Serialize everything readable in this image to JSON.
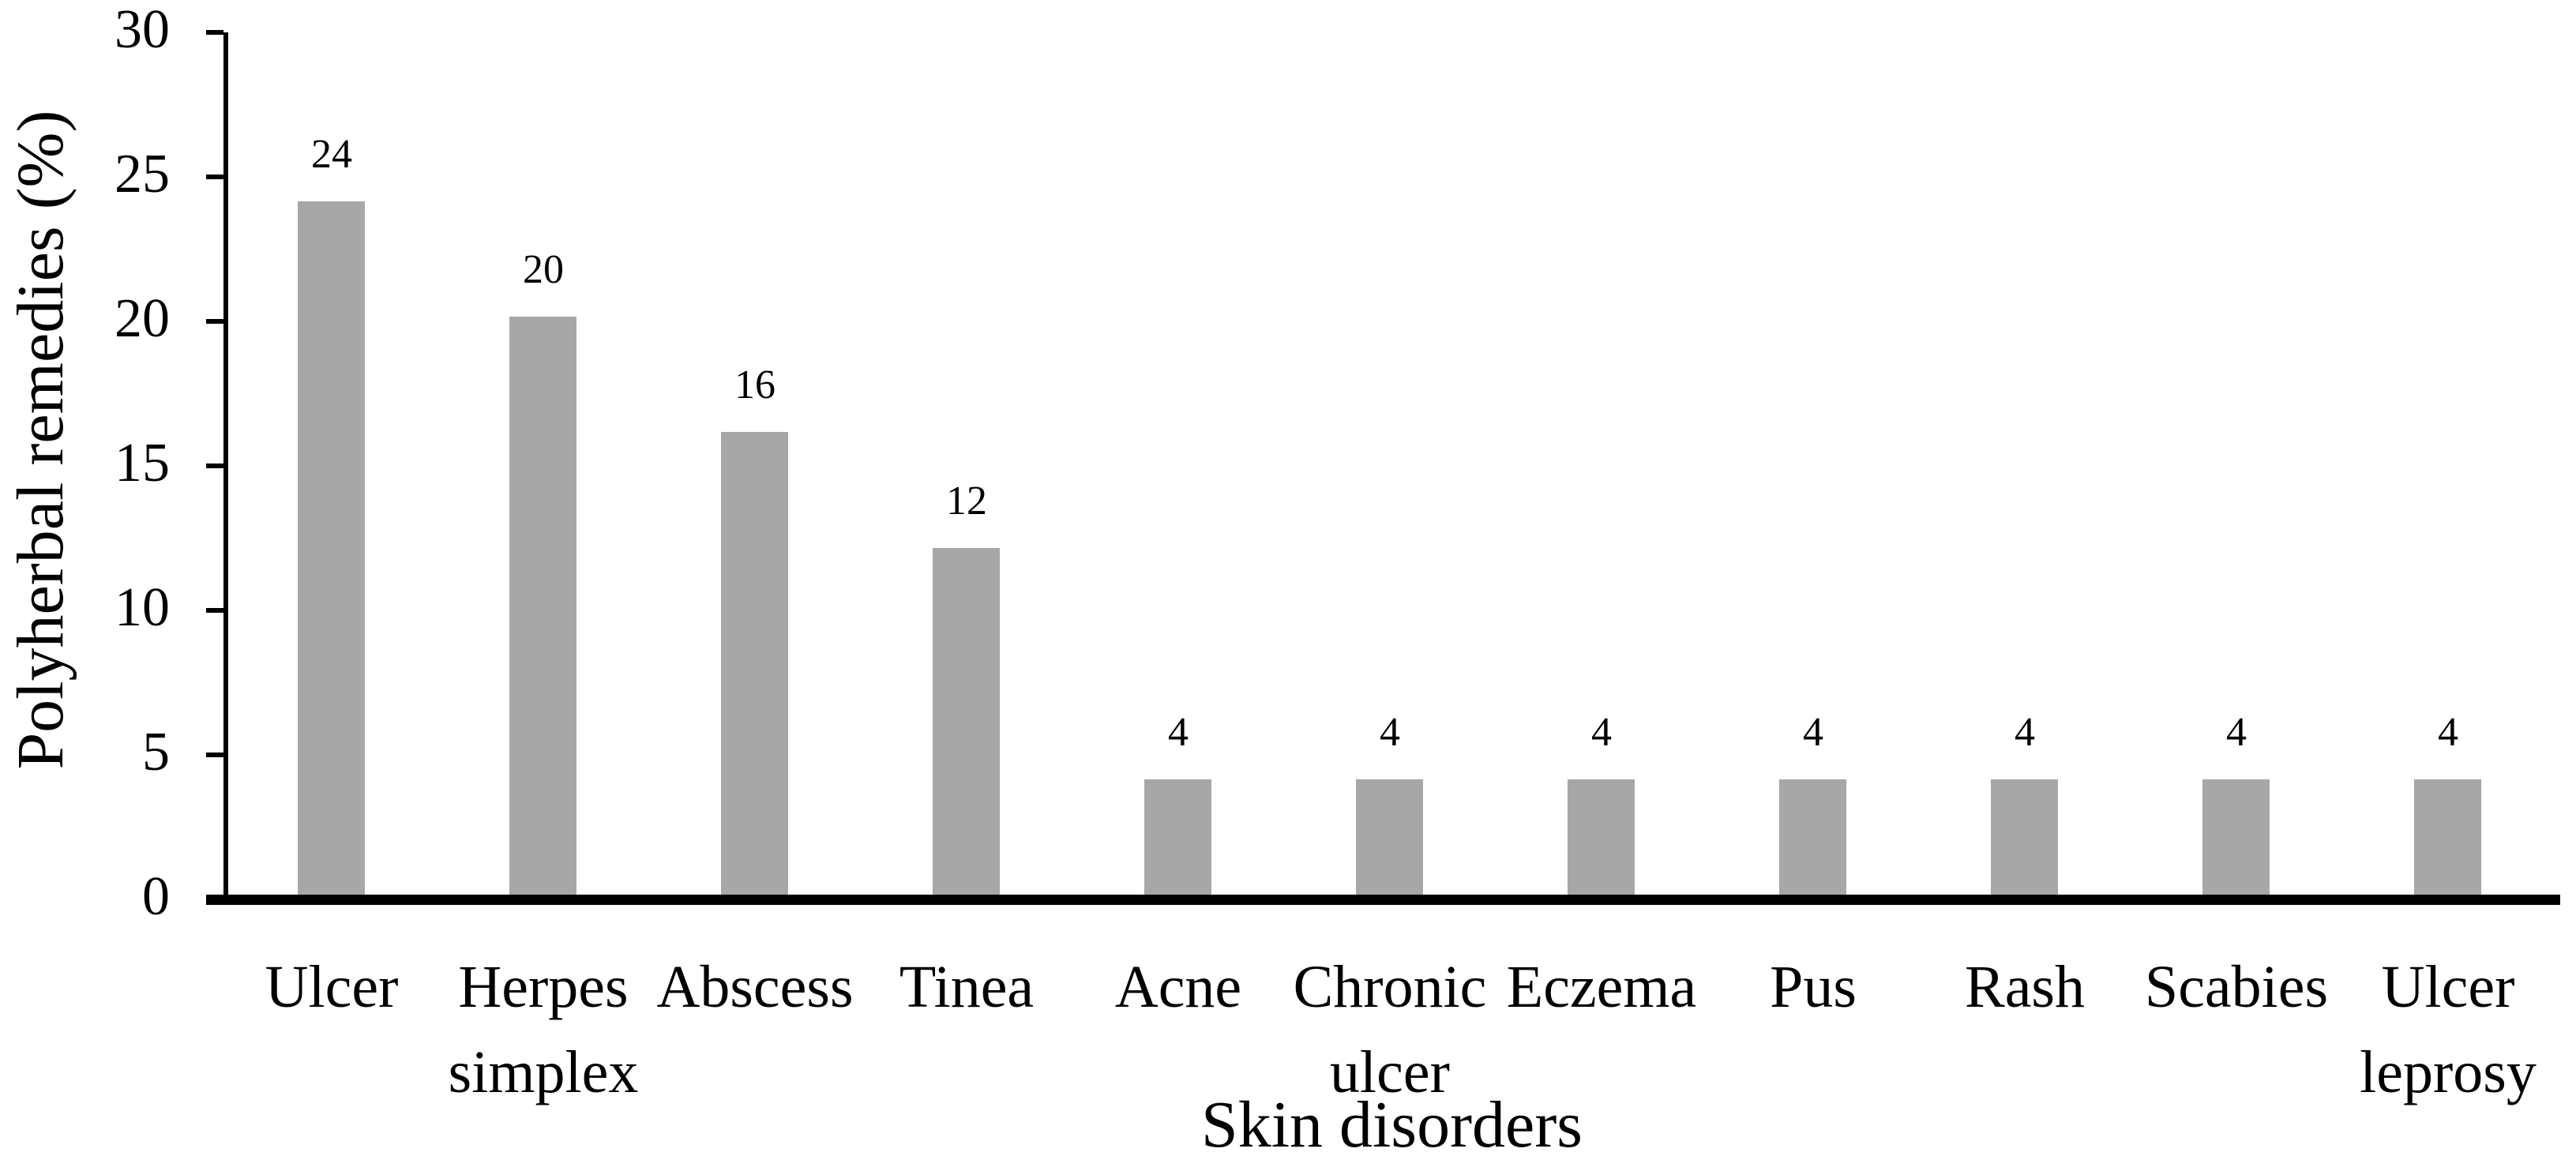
{
  "figure": {
    "background": "#ffffff"
  },
  "chart_data": {
    "type": "bar",
    "title": "",
    "xlabel": "Skin disorders",
    "ylabel": "Polyherbal remedies (%)",
    "categories": [
      "Ulcer",
      "Herpes simplex",
      "Abscess",
      "Tinea",
      "Acne",
      "Chronic ulcer",
      "Eczema",
      "Pus",
      "Rash",
      "Scabies",
      "Ulcer leprosy"
    ],
    "values": [
      24,
      20,
      16,
      12,
      4,
      4,
      4,
      4,
      4,
      4,
      4
    ],
    "yticks": [
      0,
      5,
      10,
      15,
      20,
      25,
      30
    ],
    "ylim": [
      0,
      30
    ],
    "grid": false,
    "legend": false,
    "data_labels_shown": true,
    "bar_color": "#a7a7a7",
    "axis_color": "#000000",
    "text_color": "#000000"
  }
}
